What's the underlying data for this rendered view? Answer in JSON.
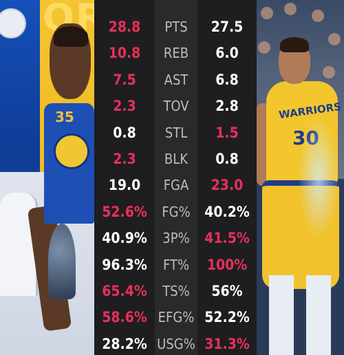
{
  "colors": {
    "highlight": "#e8305a",
    "normal": "#ffffff",
    "label": "#bdbdbd"
  },
  "stats": [
    {
      "label": "PTS",
      "left": "28.8",
      "right": "27.5",
      "left_hl": true,
      "right_hl": false
    },
    {
      "label": "REB",
      "left": "10.8",
      "right": "6.0",
      "left_hl": true,
      "right_hl": false
    },
    {
      "label": "AST",
      "left": "7.5",
      "right": "6.8",
      "left_hl": true,
      "right_hl": false
    },
    {
      "label": "TOV",
      "left": "2.3",
      "right": "2.8",
      "left_hl": true,
      "right_hl": false
    },
    {
      "label": "STL",
      "left": "0.8",
      "right": "1.5",
      "left_hl": false,
      "right_hl": true
    },
    {
      "label": "BLK",
      "left": "2.3",
      "right": "0.8",
      "left_hl": true,
      "right_hl": false
    },
    {
      "label": "FGA",
      "left": "19.0",
      "right": "23.0",
      "left_hl": false,
      "right_hl": true
    },
    {
      "label": "FG%",
      "left": "52.6%",
      "right": "40.2%",
      "left_hl": true,
      "right_hl": false
    },
    {
      "label": "3P%",
      "left": "40.9%",
      "right": "41.5%",
      "left_hl": false,
      "right_hl": true
    },
    {
      "label": "FT%",
      "left": "96.3%",
      "right": "100%",
      "left_hl": false,
      "right_hl": true
    },
    {
      "label": "TS%",
      "left": "65.4%",
      "right": "56%",
      "left_hl": true,
      "right_hl": false
    },
    {
      "label": "EFG%",
      "left": "58.6%",
      "right": "52.2%",
      "left_hl": true,
      "right_hl": false
    },
    {
      "label": "USG%",
      "left": "28.2%",
      "right": "31.3%",
      "left_hl": false,
      "right_hl": true
    }
  ],
  "left_photo": {
    "jersey_number": "35",
    "background_text": "ORS"
  },
  "right_photo": {
    "jersey_text": "WARRIORS",
    "jersey_number": "30"
  }
}
